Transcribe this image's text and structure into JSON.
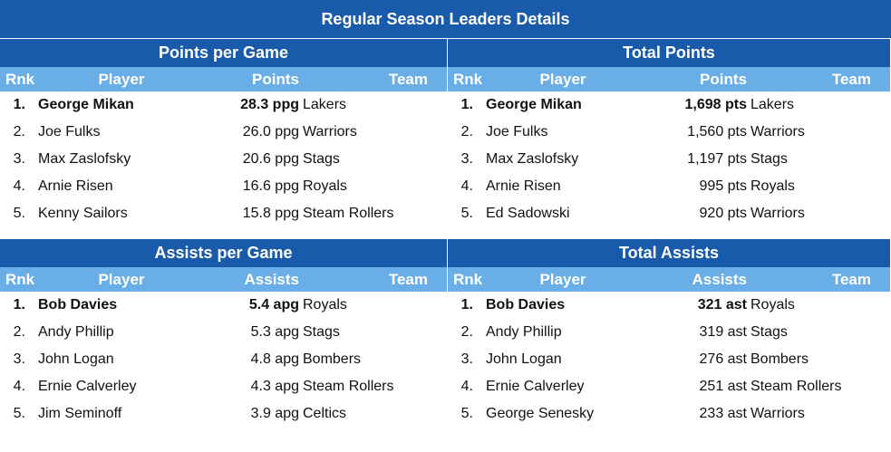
{
  "title": "Regular Season Leaders Details",
  "columns": {
    "rank": "Rnk",
    "player": "Player",
    "team": "Team"
  },
  "sections": [
    {
      "title": "Points per Game",
      "value_header": "Points",
      "rows": [
        {
          "rank": "1.",
          "player": "George Mikan",
          "value": "28.3 ppg",
          "team": "Lakers"
        },
        {
          "rank": "2.",
          "player": "Joe Fulks",
          "value": "26.0 ppg",
          "team": "Warriors"
        },
        {
          "rank": "3.",
          "player": "Max Zaslofsky",
          "value": "20.6 ppg",
          "team": "Stags"
        },
        {
          "rank": "4.",
          "player": "Arnie Risen",
          "value": "16.6 ppg",
          "team": "Royals"
        },
        {
          "rank": "5.",
          "player": "Kenny Sailors",
          "value": "15.8 ppg",
          "team": "Steam Rollers"
        }
      ]
    },
    {
      "title": "Total Points",
      "value_header": "Points",
      "rows": [
        {
          "rank": "1.",
          "player": "George Mikan",
          "value": "1,698 pts",
          "team": "Lakers"
        },
        {
          "rank": "2.",
          "player": "Joe Fulks",
          "value": "1,560 pts",
          "team": "Warriors"
        },
        {
          "rank": "3.",
          "player": "Max Zaslofsky",
          "value": "1,197 pts",
          "team": "Stags"
        },
        {
          "rank": "4.",
          "player": "Arnie Risen",
          "value": "995 pts",
          "team": "Royals"
        },
        {
          "rank": "5.",
          "player": "Ed Sadowski",
          "value": "920 pts",
          "team": "Warriors"
        }
      ]
    },
    {
      "title": "Assists per Game",
      "value_header": "Assists",
      "rows": [
        {
          "rank": "1.",
          "player": "Bob Davies",
          "value": "5.4 apg",
          "team": "Royals"
        },
        {
          "rank": "2.",
          "player": "Andy Phillip",
          "value": "5.3 apg",
          "team": "Stags"
        },
        {
          "rank": "3.",
          "player": "John Logan",
          "value": "4.8 apg",
          "team": "Bombers"
        },
        {
          "rank": "4.",
          "player": "Ernie Calverley",
          "value": "4.3 apg",
          "team": "Steam Rollers"
        },
        {
          "rank": "5.",
          "player": "Jim Seminoff",
          "value": "3.9 apg",
          "team": "Celtics"
        }
      ]
    },
    {
      "title": "Total Assists",
      "value_header": "Assists",
      "rows": [
        {
          "rank": "1.",
          "player": "Bob Davies",
          "value": "321 ast",
          "team": "Royals"
        },
        {
          "rank": "2.",
          "player": "Andy Phillip",
          "value": "319 ast",
          "team": "Stags"
        },
        {
          "rank": "3.",
          "player": "John Logan",
          "value": "276 ast",
          "team": "Bombers"
        },
        {
          "rank": "4.",
          "player": "Ernie Calverley",
          "value": "251 ast",
          "team": "Steam Rollers"
        },
        {
          "rank": "5.",
          "player": "George Senesky",
          "value": "233 ast",
          "team": "Warriors"
        }
      ]
    }
  ],
  "colors": {
    "header": "#1a5aaa",
    "subheader": "#6aaee8"
  }
}
